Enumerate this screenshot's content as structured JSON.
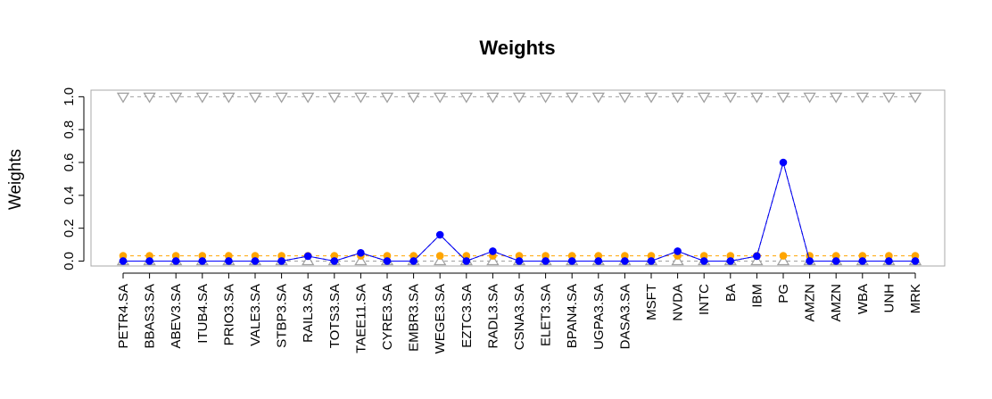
{
  "chart_data": {
    "type": "line",
    "title": "Weights",
    "ylabel": "Weights",
    "xlabel": "",
    "ylim": [
      -0.03,
      1.04
    ],
    "yticks": [
      0.0,
      0.2,
      0.4,
      0.6,
      0.8,
      1.0
    ],
    "yticklabels": [
      "0.0",
      "0.2",
      "0.4",
      "0.6",
      "0.8",
      "1.0"
    ],
    "grid": false,
    "categories": [
      "PETR4.SA",
      "BBAS3.SA",
      "ABEV3.SA",
      "ITUB4.SA",
      "PRIO3.SA",
      "VALE3.SA",
      "STBP3.SA",
      "RAIL3.SA",
      "TOTS3.SA",
      "TAEE11.SA",
      "CYRE3.SA",
      "EMBR3.SA",
      "WEGE3.SA",
      "EZTC3.SA",
      "RADL3.SA",
      "CSNA3.SA",
      "ELET3.SA",
      "BPAN4.SA",
      "UGPA3.SA",
      "DASA3.SA",
      "MSFT",
      "NVDA",
      "INTC",
      "BA",
      "IBM",
      "PG",
      "AMZN",
      "AMZN",
      "WBA",
      "UNH",
      "MRK"
    ],
    "series": [
      {
        "color": "#a0a0a0",
        "marker": "triangle-down-open",
        "line": "dashed",
        "values": [
          1,
          1,
          1,
          1,
          1,
          1,
          1,
          1,
          1,
          1,
          1,
          1,
          1,
          1,
          1,
          1,
          1,
          1,
          1,
          1,
          1,
          1,
          1,
          1,
          1,
          1,
          1,
          1,
          1,
          1,
          1
        ]
      },
      {
        "color": "#a0a0a0",
        "marker": "triangle-up-open",
        "line": "dashed",
        "values": [
          0,
          0,
          0,
          0,
          0,
          0,
          0,
          0,
          0,
          0,
          0,
          0,
          0,
          0,
          0,
          0,
          0,
          0,
          0,
          0,
          0,
          0,
          0,
          0,
          0,
          0,
          0,
          0,
          0,
          0,
          0
        ]
      },
      {
        "color": "#ffa500",
        "marker": "circle-filled",
        "line": "dashed",
        "values": [
          0.032,
          0.032,
          0.032,
          0.032,
          0.032,
          0.032,
          0.032,
          0.032,
          0.032,
          0.032,
          0.032,
          0.032,
          0.032,
          0.032,
          0.032,
          0.032,
          0.032,
          0.032,
          0.032,
          0.032,
          0.032,
          0.032,
          0.032,
          0.032,
          0.032,
          0.032,
          0.032,
          0.032,
          0.032,
          0.032,
          0.032
        ]
      },
      {
        "color": "#000000",
        "marker": "none",
        "line": "dashed",
        "values": [
          0,
          0,
          0,
          0,
          0,
          0,
          0,
          0.03,
          0,
          0.05,
          0,
          0,
          0.16,
          0,
          0.06,
          0,
          0,
          0,
          0,
          0,
          0,
          0.06,
          0,
          0,
          0.03,
          0.6,
          0,
          0,
          0,
          0,
          0
        ]
      },
      {
        "color": "#0000ff",
        "marker": "circle-filled",
        "line": "solid",
        "values": [
          0,
          0,
          0,
          0,
          0,
          0,
          0,
          0.03,
          0,
          0.05,
          0,
          0,
          0.16,
          0,
          0.06,
          0,
          0,
          0,
          0,
          0,
          0,
          0.06,
          0,
          0,
          0.03,
          0.6,
          0,
          0,
          0,
          0,
          0
        ]
      }
    ]
  }
}
